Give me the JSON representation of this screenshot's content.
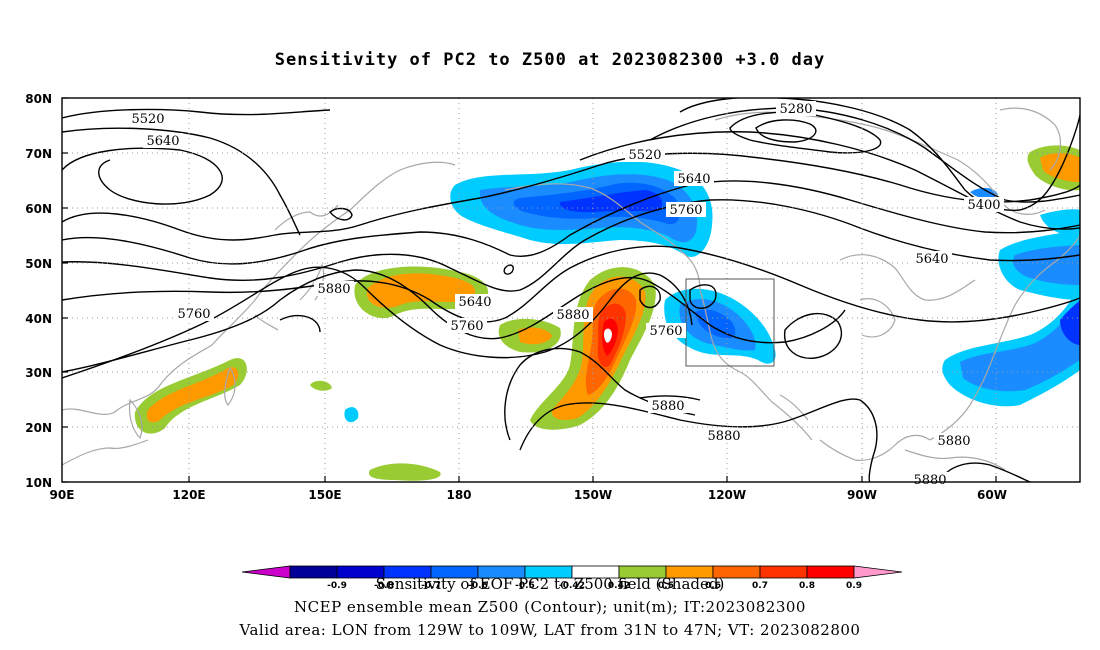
{
  "title": "Sensitivity of PC2 to Z500 at 2023082300 +3.0 day",
  "map": {
    "lat_ticks": [
      "80N",
      "70N",
      "60N",
      "50N",
      "40N",
      "30N",
      "20N",
      "10N"
    ],
    "lon_ticks": [
      "90E",
      "120E",
      "150E",
      "180",
      "150W",
      "120W",
      "90W",
      "60W"
    ],
    "contour_labels": [
      "5280",
      "5520",
      "5640",
      "5520",
      "5640",
      "5760",
      "5400",
      "5640",
      "5880",
      "5640",
      "5760",
      "5880",
      "5760",
      "5760",
      "5880",
      "5880",
      "5880",
      "5880"
    ],
    "valid_box": {
      "lon_from": "129W",
      "lon_to": "109W",
      "lat_from": "31N",
      "lat_to": "47N"
    }
  },
  "colorbar": {
    "labels": [
      "-0.9",
      "-0.8",
      "-0.7",
      "-0.6",
      "-0.5",
      "-0.42",
      "0.42",
      "0.5",
      "0.6",
      "0.7",
      "0.8",
      "0.9"
    ],
    "colors": [
      "#000099",
      "#0000cc",
      "#0033ff",
      "#0066ff",
      "#1a8cff",
      "#00ccff",
      "#ffffff",
      "#99cc33",
      "#ff9900",
      "#ff6600",
      "#ff3300",
      "#ff0000"
    ],
    "low_end_color": "#cc00cc",
    "high_end_color": "#ff99cc"
  },
  "footer": {
    "line1": "Sensitivity of EOF PC2 to Z500 field (Shaded)",
    "line2": "NCEP ensemble mean Z500 (Contour); unit(m); IT:2023082300",
    "line3": "Valid area: LON from 129W to 109W, LAT from 31N to 47N; VT: 2023082800"
  }
}
